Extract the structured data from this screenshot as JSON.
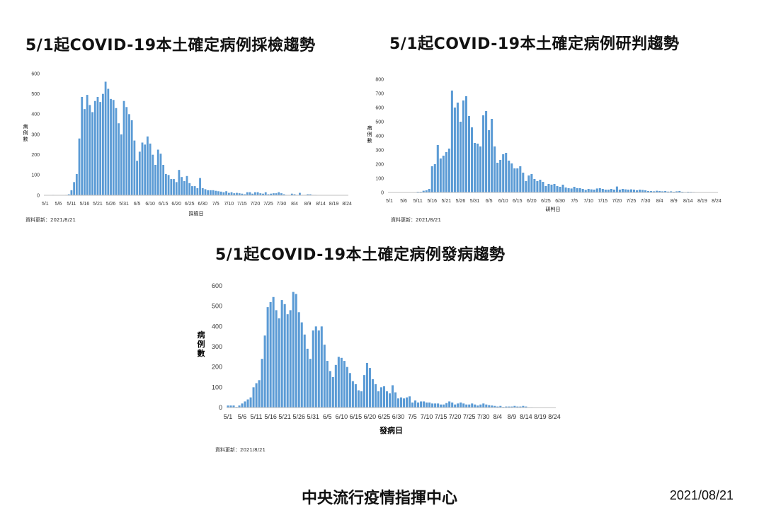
{
  "footer": {
    "org": "中央流行疫情指揮中心",
    "date": "2021/08/21"
  },
  "colors": {
    "bar": "#5b9bd5",
    "axis": "#bfbfbf"
  },
  "charts": [
    {
      "title": "5/1起COVID-19本土確定病例採檢趨勢",
      "source_note": "資料更新：2021/8/21"
    },
    {
      "title": "5/1起COVID-19本土確定病例研判趨勢",
      "source_note": "資料更新：2021/8/21"
    },
    {
      "title": "5/1起COVID-19本土確定病例發病趨勢",
      "source_note": "資料更新：2021/8/21"
    }
  ],
  "chart_data": [
    {
      "type": "bar",
      "title": "5/1起COVID-19本土確定病例採檢趨勢",
      "xlabel": "採檢日",
      "ylabel": "病例數",
      "ylim": [
        0,
        600
      ],
      "yticks": [
        0,
        100,
        200,
        300,
        400,
        500,
        600
      ],
      "xtick_labels": [
        "5/1",
        "5/6",
        "5/11",
        "5/16",
        "5/21",
        "5/26",
        "5/31",
        "6/5",
        "6/10",
        "6/15",
        "6/20",
        "6/25",
        "6/30",
        "7/5",
        "7/10",
        "7/15",
        "7/20",
        "7/25",
        "7/30",
        "8/4",
        "8/9",
        "8/14",
        "8/19",
        "8/24"
      ],
      "categories_start": "5/1",
      "values": [
        0,
        0,
        0,
        2,
        0,
        0,
        0,
        0,
        2,
        5,
        25,
        65,
        105,
        280,
        485,
        425,
        495,
        445,
        410,
        465,
        485,
        460,
        500,
        560,
        525,
        475,
        470,
        430,
        355,
        300,
        465,
        435,
        400,
        370,
        270,
        170,
        215,
        260,
        250,
        290,
        255,
        200,
        150,
        225,
        205,
        150,
        105,
        100,
        80,
        80,
        65,
        125,
        90,
        70,
        95,
        60,
        45,
        45,
        35,
        85,
        35,
        30,
        25,
        25,
        25,
        22,
        20,
        18,
        15,
        20,
        12,
        15,
        10,
        12,
        10,
        8,
        5,
        15,
        15,
        8,
        15,
        15,
        10,
        8,
        15,
        5,
        8,
        10,
        10,
        15,
        10,
        5,
        2,
        2,
        8,
        5,
        2,
        12,
        2,
        2,
        5,
        5,
        2,
        2,
        1,
        1,
        1
      ]
    },
    {
      "type": "bar",
      "title": "5/1起COVID-19本土確定病例研判趨勢",
      "xlabel": "研判日",
      "ylabel": "病例數",
      "ylim": [
        0,
        800
      ],
      "yticks": [
        0,
        100,
        200,
        300,
        400,
        500,
        600,
        700,
        800
      ],
      "xtick_labels": [
        "5/1",
        "5/6",
        "5/11",
        "5/16",
        "5/21",
        "5/26",
        "5/31",
        "6/5",
        "6/10",
        "6/15",
        "6/20",
        "6/25",
        "6/30",
        "7/5",
        "7/10",
        "7/15",
        "7/20",
        "7/25",
        "7/30",
        "8/4",
        "8/9",
        "8/14",
        "8/19",
        "8/24"
      ],
      "categories_start": "5/1",
      "values": [
        0,
        2,
        0,
        0,
        0,
        0,
        0,
        2,
        0,
        0,
        5,
        5,
        12,
        15,
        25,
        185,
        200,
        335,
        240,
        260,
        285,
        310,
        720,
        600,
        635,
        500,
        650,
        680,
        540,
        460,
        350,
        345,
        325,
        545,
        575,
        440,
        520,
        325,
        210,
        230,
        270,
        280,
        225,
        205,
        170,
        170,
        185,
        140,
        80,
        120,
        130,
        95,
        80,
        90,
        75,
        45,
        60,
        55,
        60,
        45,
        40,
        55,
        35,
        30,
        28,
        40,
        30,
        30,
        25,
        18,
        25,
        22,
        20,
        28,
        30,
        25,
        20,
        20,
        25,
        20,
        42,
        20,
        25,
        22,
        20,
        22,
        20,
        15,
        20,
        18,
        15,
        10,
        10,
        8,
        12,
        10,
        8,
        10,
        6,
        8,
        5,
        8,
        10,
        5,
        3,
        5,
        4,
        3,
        2
      ]
    },
    {
      "type": "bar",
      "title": "5/1起COVID-19本土確定病例發病趨勢",
      "xlabel": "發病日",
      "ylabel": "病例數",
      "ylim": [
        0,
        600
      ],
      "yticks": [
        0,
        100,
        200,
        300,
        400,
        500,
        600
      ],
      "xtick_labels": [
        "5/1",
        "5/6",
        "5/11",
        "5/16",
        "5/21",
        "5/26",
        "5/31",
        "6/5",
        "6/10",
        "6/15",
        "6/20",
        "6/25",
        "6/30",
        "7/5",
        "7/10",
        "7/15",
        "7/20",
        "7/25",
        "7/30",
        "8/4",
        "8/9",
        "8/14",
        "8/19",
        "8/24"
      ],
      "categories_start": "5/1",
      "values": [
        10,
        10,
        10,
        3,
        10,
        20,
        30,
        40,
        50,
        100,
        120,
        135,
        240,
        355,
        495,
        520,
        545,
        480,
        440,
        530,
        510,
        460,
        480,
        570,
        560,
        470,
        420,
        360,
        290,
        240,
        380,
        400,
        380,
        400,
        310,
        230,
        180,
        150,
        210,
        250,
        245,
        230,
        200,
        170,
        130,
        115,
        85,
        80,
        160,
        220,
        195,
        140,
        115,
        80,
        100,
        105,
        80,
        70,
        110,
        75,
        45,
        50,
        45,
        50,
        55,
        25,
        35,
        25,
        30,
        30,
        25,
        25,
        20,
        20,
        20,
        15,
        15,
        22,
        30,
        25,
        15,
        20,
        25,
        20,
        15,
        15,
        20,
        15,
        10,
        15,
        20,
        15,
        12,
        10,
        8,
        5,
        8,
        3,
        5,
        5,
        5,
        8,
        5,
        5,
        8,
        5,
        2,
        2,
        1,
        1
      ]
    }
  ]
}
